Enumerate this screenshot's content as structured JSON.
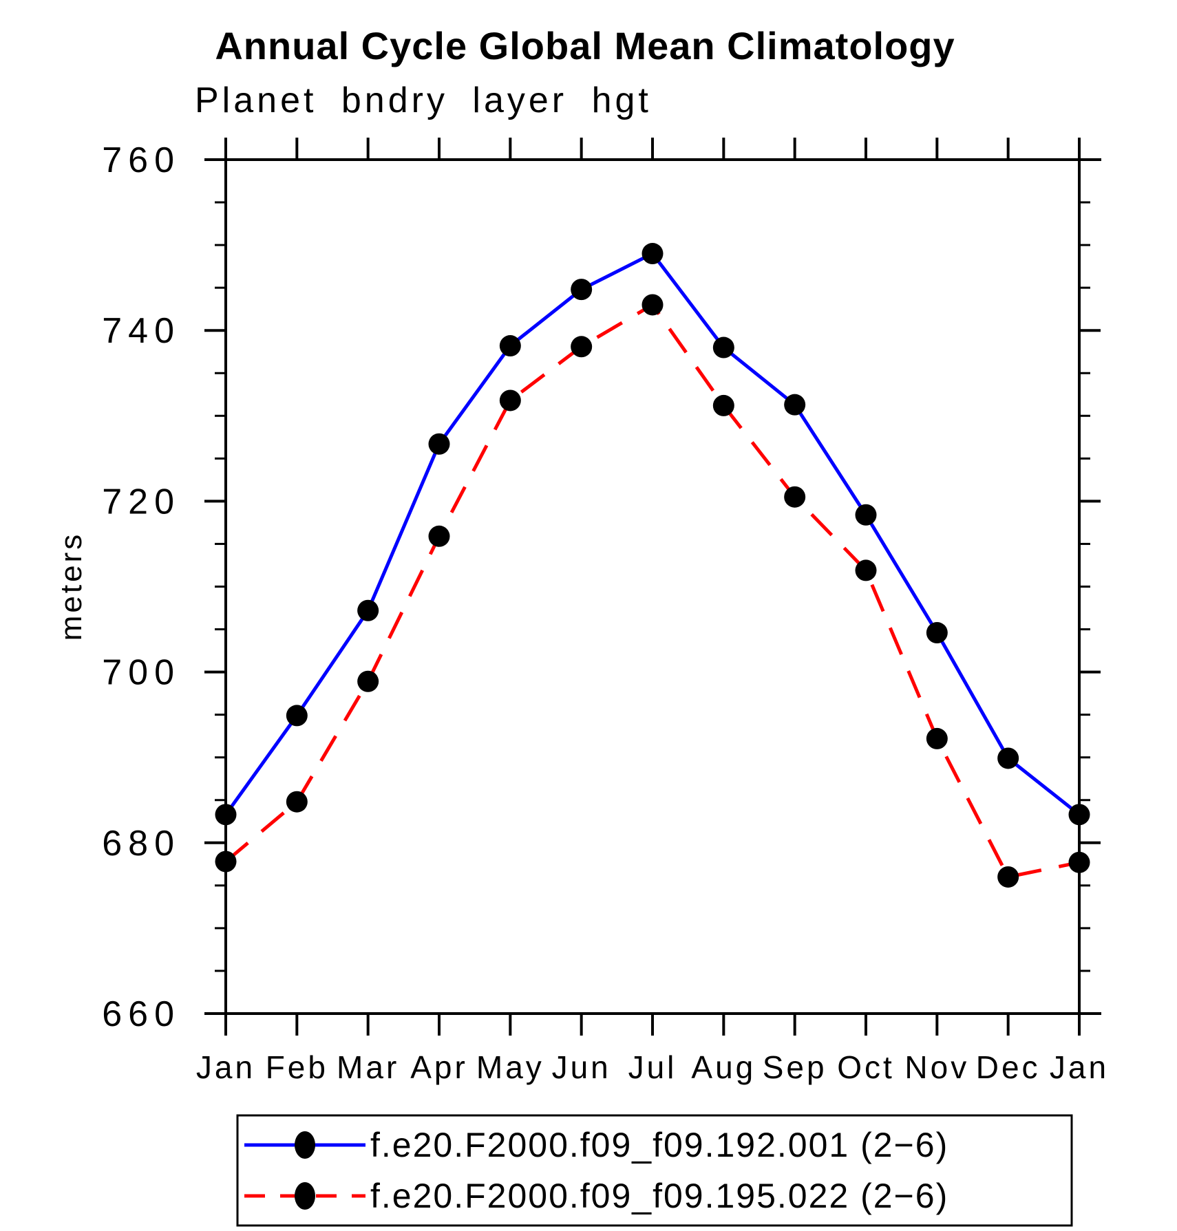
{
  "chart_data": {
    "type": "line",
    "title": "Annual Cycle Global Mean Climatology",
    "subtitle": "Planet bndry layer hgt",
    "ylabel": "meters",
    "xlabel": "",
    "categories": [
      "Jan",
      "Feb",
      "Mar",
      "Apr",
      "May",
      "Jun",
      "Jul",
      "Aug",
      "Sep",
      "Oct",
      "Nov",
      "Dec",
      "Jan"
    ],
    "ylim": [
      660,
      760
    ],
    "ytick_major_step": 20,
    "ytick_minor_step": 5,
    "grid": false,
    "legend_position": "bottom",
    "axis_color": "#000000",
    "marker_color": "#000000",
    "series": [
      {
        "name": "f.e20.F2000.f09_f09.192.001 (2−6)",
        "color": "#0000ff",
        "line_style": "solid",
        "marker": "filled-circle",
        "values": [
          683.3,
          694.9,
          707.2,
          726.7,
          738.2,
          744.8,
          749.0,
          738.0,
          731.3,
          718.4,
          704.6,
          689.9,
          683.3
        ]
      },
      {
        "name": "f.e20.F2000.f09_f09.195.022 (2−6)",
        "color": "#ff0000",
        "line_style": "dashed",
        "marker": "filled-circle",
        "values": [
          677.8,
          684.8,
          698.9,
          715.9,
          731.8,
          738.1,
          743.0,
          731.2,
          720.5,
          711.9,
          692.2,
          676.0,
          677.7
        ]
      }
    ]
  }
}
